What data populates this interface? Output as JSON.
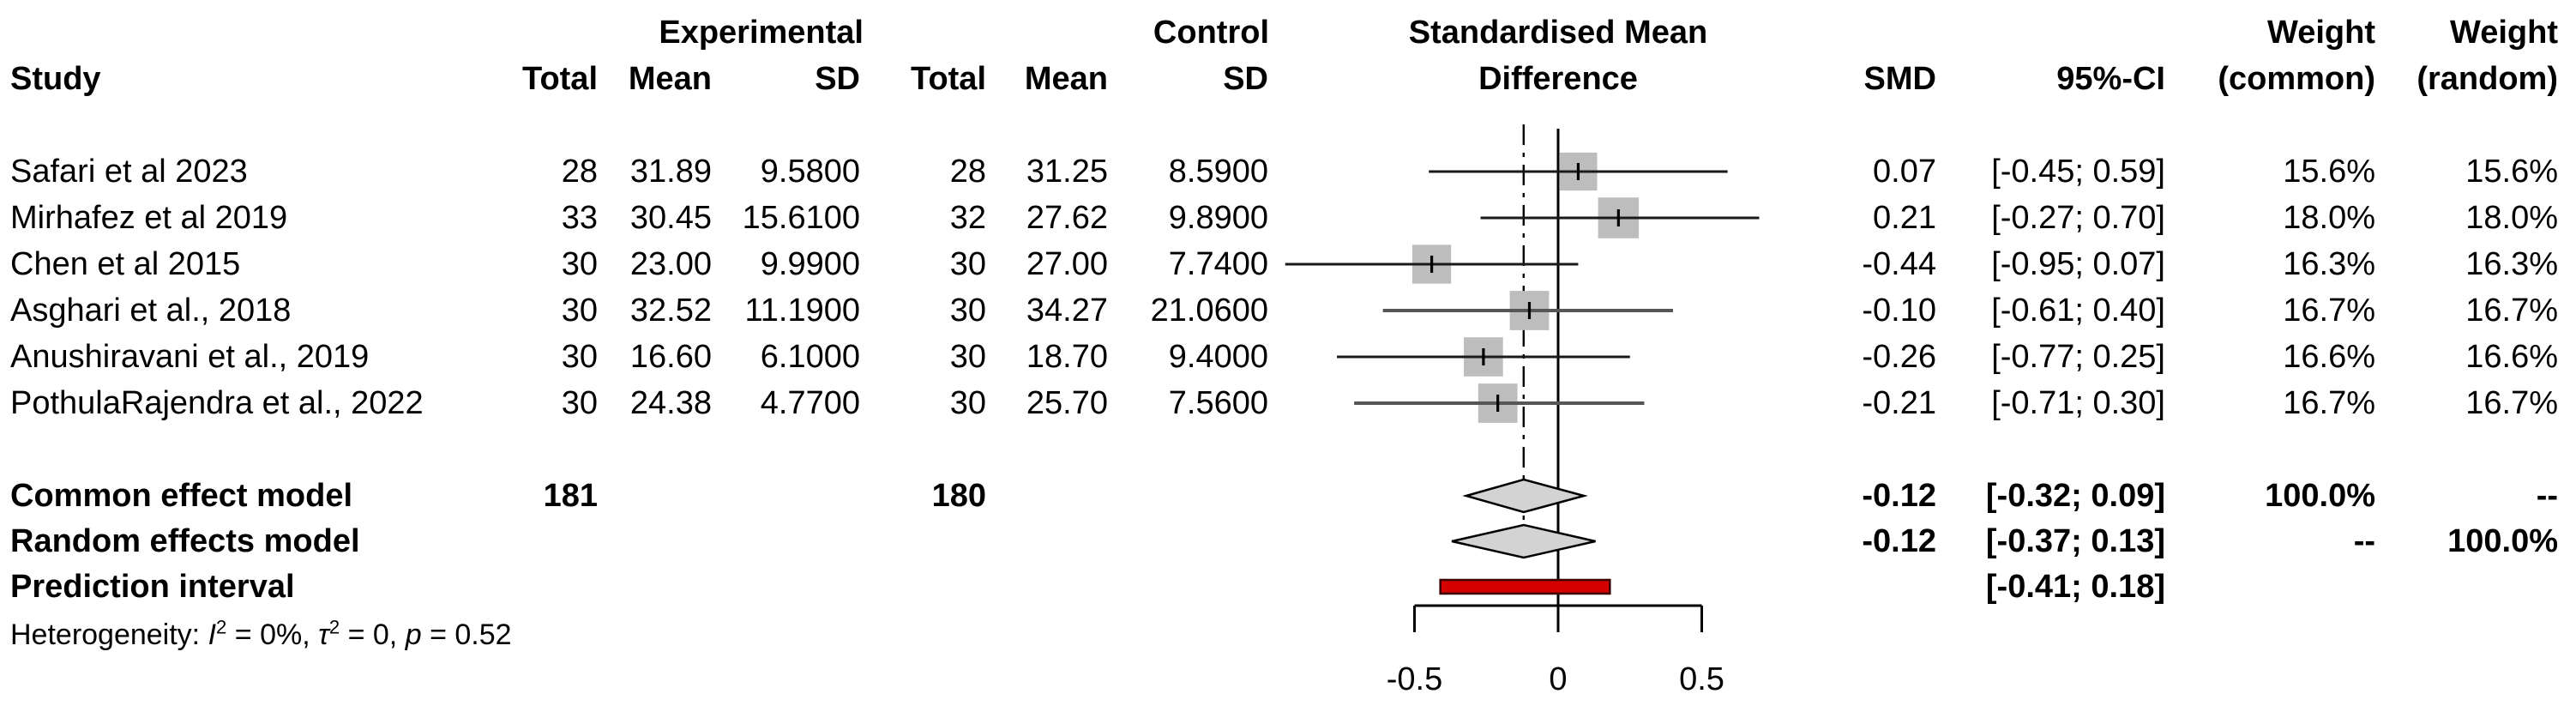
{
  "headers": {
    "study": "Study",
    "experimental_group": "Experimental",
    "control_group": "Control",
    "smd_title_line1": "Standardised Mean",
    "smd_title_line2": "Difference",
    "weight_common_title": "Weight",
    "weight_random_title": "Weight",
    "col_total": "Total",
    "col_mean": "Mean",
    "col_sd": "SD",
    "col_smd": "SMD",
    "col_ci": "95%-CI",
    "col_weight_common": "(common)",
    "col_weight_random": "(random)"
  },
  "studies": [
    {
      "name": "Safari et al 2023",
      "exp_total": "28",
      "exp_mean": "31.89",
      "exp_sd": "9.5800",
      "ctrl_total": "28",
      "ctrl_mean": "31.25",
      "ctrl_sd": "8.5900",
      "smd": "0.07",
      "ci": "[-0.45; 0.59]",
      "w_common": "15.6%",
      "w_random": "15.6%"
    },
    {
      "name": "Mirhafez et al 2019",
      "exp_total": "33",
      "exp_mean": "30.45",
      "exp_sd": "15.6100",
      "ctrl_total": "32",
      "ctrl_mean": "27.62",
      "ctrl_sd": "9.8900",
      "smd": "0.21",
      "ci": "[-0.27; 0.70]",
      "w_common": "18.0%",
      "w_random": "18.0%"
    },
    {
      "name": "Chen et al 2015",
      "exp_total": "30",
      "exp_mean": "23.00",
      "exp_sd": "9.9900",
      "ctrl_total": "30",
      "ctrl_mean": "27.00",
      "ctrl_sd": "7.7400",
      "smd": "-0.44",
      "ci": "[-0.95; 0.07]",
      "w_common": "16.3%",
      "w_random": "16.3%"
    },
    {
      "name": "Asghari et al., 2018",
      "exp_total": "30",
      "exp_mean": "32.52",
      "exp_sd": "11.1900",
      "ctrl_total": "30",
      "ctrl_mean": "34.27",
      "ctrl_sd": "21.0600",
      "smd": "-0.10",
      "ci": "[-0.61; 0.40]",
      "w_common": "16.7%",
      "w_random": "16.7%"
    },
    {
      "name": "Anushiravani et al., 2019",
      "exp_total": "30",
      "exp_mean": "16.60",
      "exp_sd": "6.1000",
      "ctrl_total": "30",
      "ctrl_mean": "18.70",
      "ctrl_sd": "9.4000",
      "smd": "-0.26",
      "ci": "[-0.77; 0.25]",
      "w_common": "16.6%",
      "w_random": "16.6%"
    },
    {
      "name": "PothulaRajendra et al., 2022",
      "exp_total": "30",
      "exp_mean": "24.38",
      "exp_sd": "4.7700",
      "ctrl_total": "30",
      "ctrl_mean": "25.70",
      "ctrl_sd": "7.5600",
      "smd": "-0.21",
      "ci": "[-0.71; 0.30]",
      "w_common": "16.7%",
      "w_random": "16.7%"
    }
  ],
  "summary_rows": [
    {
      "label": "Common effect model",
      "exp_total": "181",
      "ctrl_total": "180",
      "smd": "-0.12",
      "ci": "[-0.32; 0.09]",
      "w_common": "100.0%",
      "w_random": "--"
    },
    {
      "label": "Random effects model",
      "exp_total": "",
      "ctrl_total": "",
      "smd": "-0.12",
      "ci": "[-0.37; 0.13]",
      "w_common": "--",
      "w_random": "100.0%"
    },
    {
      "label": "Prediction interval",
      "exp_total": "",
      "ctrl_total": "",
      "smd": "",
      "ci": "[-0.41; 0.18]",
      "w_common": "",
      "w_random": ""
    }
  ],
  "heterogeneity": {
    "prefix": "Heterogeneity: ",
    "i_sym": "I",
    "i_sup": "2",
    "seg1": " = 0%, ",
    "tau_sym": "τ",
    "tau_sup": "2",
    "seg2": " = 0, ",
    "p_sym": "p",
    "seg3": " = 0.52"
  },
  "axis": {
    "tick_labels": [
      "-0.5",
      "0",
      "0.5"
    ],
    "tick_values": [
      -0.5,
      0,
      0.5
    ]
  },
  "chart_data": {
    "type": "forest",
    "xlabel_title": "Standardised Mean Difference",
    "x_ticks": [
      -0.5,
      0,
      0.5
    ],
    "zero_line": 0,
    "overall_effect_line": -0.12,
    "studies": [
      {
        "name": "Safari et al 2023",
        "est": 0.07,
        "lo": -0.45,
        "hi": 0.59,
        "weight_common": 15.6,
        "weight_random": 15.6
      },
      {
        "name": "Mirhafez et al 2019",
        "est": 0.21,
        "lo": -0.27,
        "hi": 0.7,
        "weight_common": 18.0,
        "weight_random": 18.0
      },
      {
        "name": "Chen et al 2015",
        "est": -0.44,
        "lo": -0.95,
        "hi": 0.07,
        "weight_common": 16.3,
        "weight_random": 16.3
      },
      {
        "name": "Asghari et al., 2018",
        "est": -0.1,
        "lo": -0.61,
        "hi": 0.4,
        "weight_common": 16.7,
        "weight_random": 16.7
      },
      {
        "name": "Anushiravani et al., 2019",
        "est": -0.26,
        "lo": -0.77,
        "hi": 0.25,
        "weight_common": 16.6,
        "weight_random": 16.6
      },
      {
        "name": "PothulaRajendra et al., 2022",
        "est": -0.21,
        "lo": -0.71,
        "hi": 0.3,
        "weight_common": 16.7,
        "weight_random": 16.7
      }
    ],
    "common_effect": {
      "est": -0.12,
      "lo": -0.32,
      "hi": 0.09
    },
    "random_effects": {
      "est": -0.12,
      "lo": -0.37,
      "hi": 0.13
    },
    "prediction_interval": {
      "lo": -0.41,
      "hi": 0.18
    },
    "heterogeneity": {
      "I2": "0%",
      "tau2": "0",
      "p": "0.52"
    },
    "colors": {
      "square_fill": "#bdbdbd",
      "diamond_fill": "#d3d3d3",
      "diamond_stroke": "#000000",
      "prediction_fill": "#d40000",
      "prediction_stroke": "#3a0000",
      "line": "#1a1a1a"
    }
  }
}
